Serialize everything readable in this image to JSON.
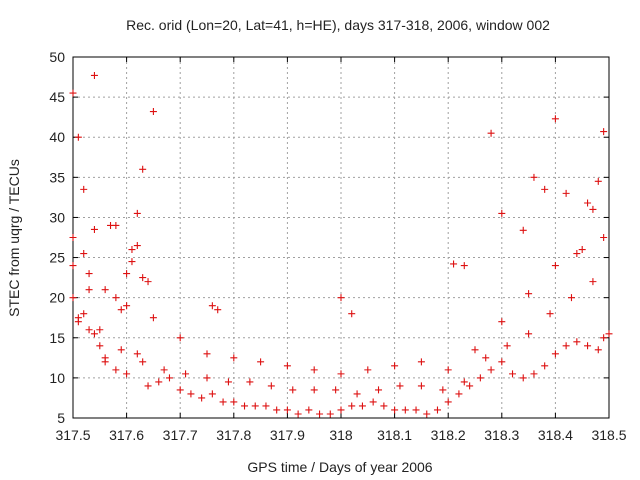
{
  "chart_data": {
    "type": "scatter",
    "title": "Rec. orid (Lon=20, Lat=41, h=HE), days 317-318, 2006, window 002",
    "xlabel": "GPS time / Days of year 2006",
    "ylabel": "STEC from uqrg / TECUs",
    "xlim": [
      317.5,
      318.5
    ],
    "ylim": [
      5,
      50
    ],
    "xticks": [
      "317.5",
      "317.6",
      "317.7",
      "317.8",
      "317.9",
      "318",
      "318.1",
      "318.2",
      "318.3",
      "318.4",
      "318.5"
    ],
    "yticks": [
      "5",
      "10",
      "15",
      "20",
      "25",
      "30",
      "35",
      "40",
      "45",
      "50"
    ],
    "grid": true,
    "marker": "+",
    "color": "#dd1111",
    "series": [
      {
        "x": [
          317.5,
          317.51,
          317.52,
          317.5,
          317.52,
          317.53,
          317.51,
          317.53,
          317.54,
          317.55,
          317.56,
          317.57,
          317.58,
          317.59,
          317.6,
          317.61,
          317.62,
          317.63,
          317.64,
          317.5,
          317.52,
          317.54,
          317.56,
          317.58,
          317.6,
          317.62,
          317.64,
          317.66,
          317.68,
          317.7,
          317.72,
          317.74,
          317.76,
          317.78,
          317.8,
          317.82,
          317.84,
          317.86,
          317.88,
          317.9,
          317.92,
          317.94,
          317.96,
          317.98,
          318.0,
          318.02,
          318.04,
          318.06,
          318.08,
          318.1,
          318.12,
          318.14,
          318.16,
          318.18,
          318.2,
          318.22,
          318.24,
          318.26,
          318.28,
          318.3,
          318.32,
          318.34,
          318.36,
          318.38,
          318.4,
          318.42,
          318.44,
          318.46,
          318.48,
          318.49,
          318.5,
          317.51,
          317.55,
          317.59,
          317.63,
          317.67,
          317.71,
          317.75,
          317.79,
          317.83,
          317.87,
          317.91,
          317.95,
          317.99,
          318.03,
          318.07,
          318.11,
          318.15,
          318.19,
          318.23,
          318.27,
          318.31,
          318.35,
          318.39,
          318.43,
          318.47,
          317.5,
          317.53,
          317.56,
          317.6,
          317.65,
          317.7,
          317.75,
          317.8,
          317.85,
          317.9,
          317.95,
          318.0,
          318.05,
          318.1,
          318.15,
          318.2,
          318.25,
          318.3,
          318.35,
          318.4,
          318.45,
          318.49,
          317.54,
          317.62,
          317.65,
          318.36,
          318.4,
          318.49,
          318.28,
          318.38,
          318.42,
          318.47,
          318.3,
          318.34,
          318.44,
          318.46,
          317.58,
          317.61,
          317.63,
          318.48,
          318.21,
          318.23,
          318.0,
          318.02,
          317.76,
          317.77
        ],
        "y": [
          45.5,
          40.0,
          33.5,
          27.5,
          25.5,
          21.0,
          17.5,
          16.0,
          47.7,
          14.0,
          12.5,
          29.0,
          20.0,
          18.5,
          23.0,
          26.0,
          30.5,
          36.0,
          22.0,
          20.0,
          18.0,
          15.5,
          12.0,
          11.0,
          10.5,
          13.0,
          9.0,
          9.5,
          10.0,
          8.5,
          8.0,
          7.5,
          8.0,
          7.0,
          7.0,
          6.5,
          6.5,
          6.5,
          6.0,
          6.0,
          5.5,
          6.0,
          5.5,
          5.5,
          6.0,
          6.5,
          6.5,
          7.0,
          6.5,
          6.0,
          6.0,
          6.0,
          5.5,
          6.0,
          7.0,
          8.0,
          9.0,
          10.0,
          11.0,
          12.0,
          10.5,
          10.0,
          10.5,
          11.5,
          13.0,
          14.0,
          14.5,
          14.0,
          13.5,
          15.0,
          15.5,
          17.0,
          16.0,
          13.5,
          12.0,
          11.0,
          10.5,
          10.0,
          9.5,
          9.5,
          9.0,
          8.5,
          8.5,
          8.5,
          8.0,
          8.5,
          9.0,
          9.0,
          8.5,
          9.5,
          12.5,
          14.0,
          15.5,
          18.0,
          20.0,
          22.0,
          24.0,
          23.0,
          21.0,
          19.0,
          17.5,
          15.0,
          13.0,
          12.5,
          12.0,
          11.5,
          11.0,
          10.5,
          11.0,
          11.5,
          12.0,
          11.0,
          13.5,
          17.0,
          20.5,
          24.0,
          26.0,
          27.5,
          28.5,
          26.5,
          43.2,
          35.0,
          42.3,
          40.7,
          40.5,
          33.5,
          33.0,
          31.0,
          30.5,
          28.4,
          25.5,
          31.8,
          29.0,
          24.5,
          22.5,
          34.5,
          24.2,
          24.0,
          20.0,
          18.0,
          19.0,
          18.5
        ]
      }
    ]
  }
}
